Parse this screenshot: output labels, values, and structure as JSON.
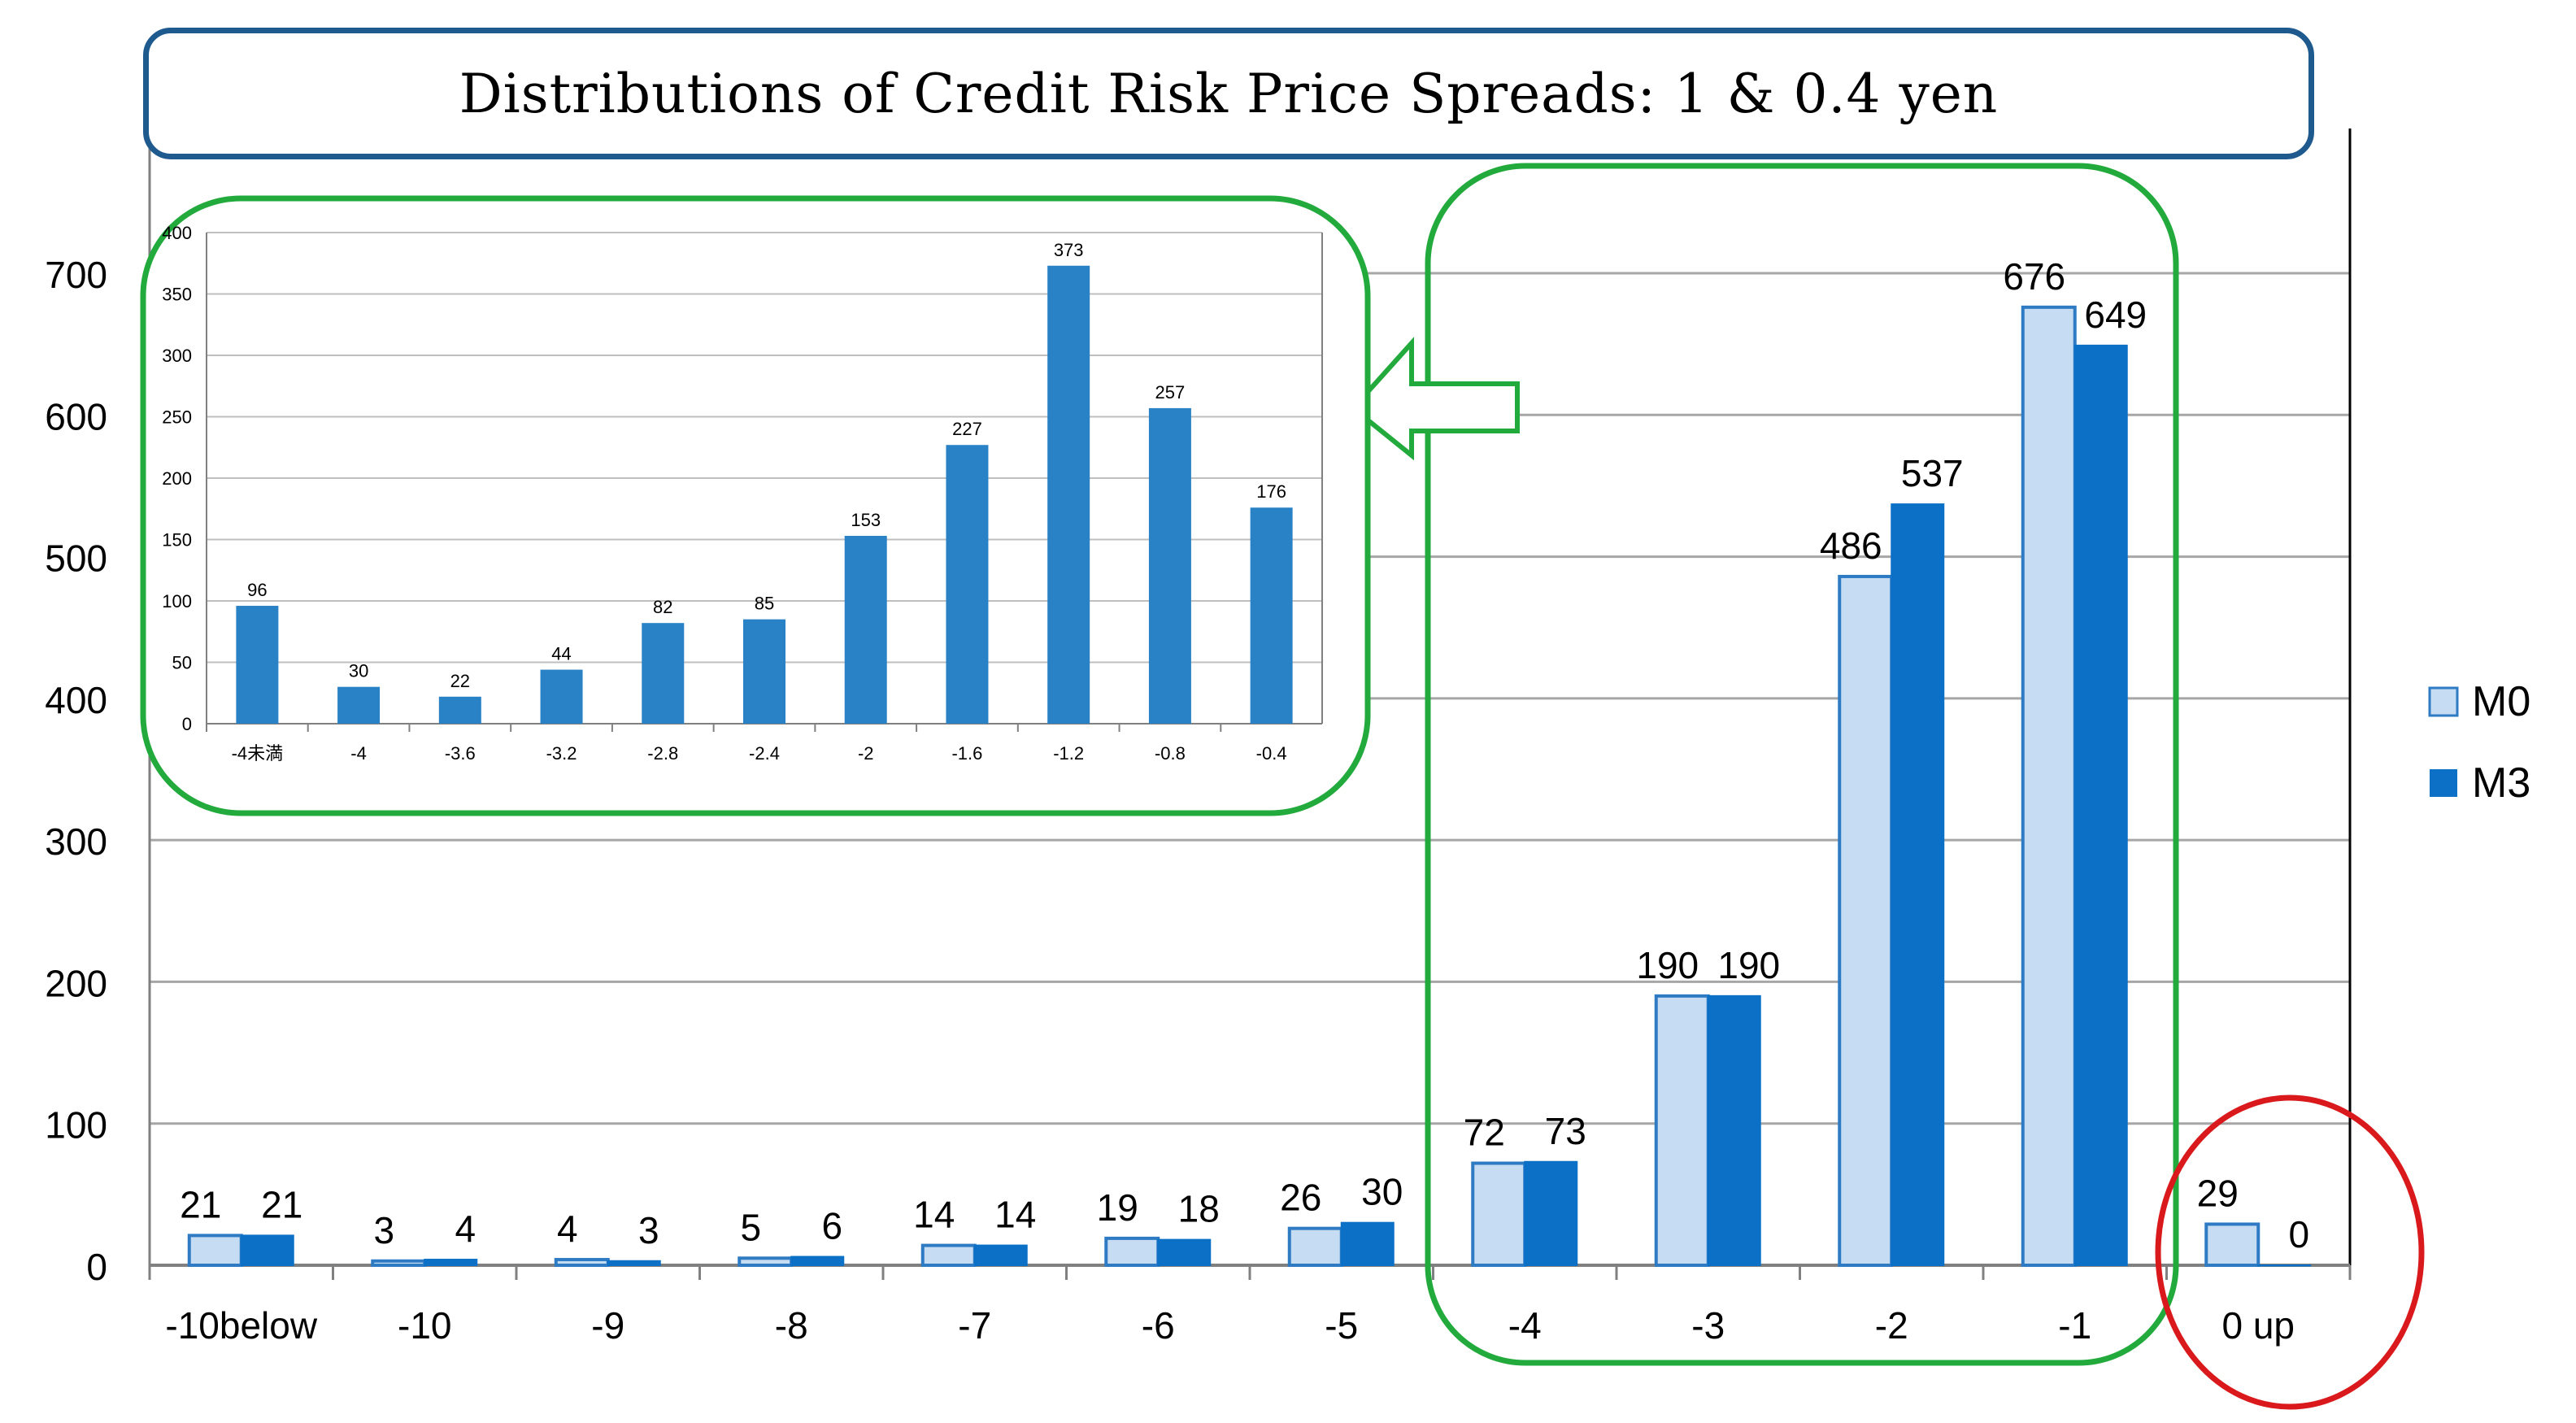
{
  "title": "Distributions of Credit Risk Price Spreads: 1 & 0.4 yen",
  "colors": {
    "m0_fill": "#c5dcf2",
    "m0_stroke": "#2e7bc4",
    "m3_fill": "#0b70c6",
    "inset_bar": "#2a82c6",
    "grid": "#a6a6a6",
    "green_outline": "#22aa3c",
    "red_outline": "#d9191b",
    "title_border": "#1f5a8e"
  },
  "chart_data": [
    {
      "type": "bar",
      "title": "Distributions of Credit Risk Price Spreads: 1 & 0.4 yen",
      "xlabel": "",
      "ylabel": "",
      "categories": [
        "-10below",
        "-10",
        "-9",
        "-8",
        "-7",
        "-6",
        "-5",
        "-4",
        "-3",
        "-2",
        "-1",
        "0  up"
      ],
      "series": [
        {
          "name": "M0",
          "values": [
            21,
            3,
            4,
            5,
            14,
            19,
            26,
            72,
            190,
            486,
            676,
            29
          ]
        },
        {
          "name": "M3",
          "values": [
            21,
            4,
            3,
            6,
            14,
            18,
            30,
            73,
            190,
            537,
            649,
            0
          ]
        }
      ],
      "ylim": [
        0,
        700
      ],
      "yticks": [
        "0",
        "100",
        "200",
        "300",
        "400",
        "500",
        "600",
        "700"
      ],
      "grid": true,
      "legend": "right"
    },
    {
      "type": "bar",
      "title": "",
      "xlabel": "",
      "ylabel": "",
      "categories": [
        "-4未満",
        "-4",
        "-3.6",
        "-3.2",
        "-2.8",
        "-2.4",
        "-2",
        "-1.6",
        "-1.2",
        "-0.8",
        "-0.4"
      ],
      "values": [
        96,
        30,
        22,
        44,
        82,
        85,
        153,
        227,
        373,
        257,
        176
      ],
      "ylim": [
        0,
        400
      ],
      "yticks": [
        "0",
        "50",
        "100",
        "150",
        "200",
        "250",
        "300",
        "350",
        "400"
      ],
      "grid": true,
      "legend": "none"
    }
  ]
}
